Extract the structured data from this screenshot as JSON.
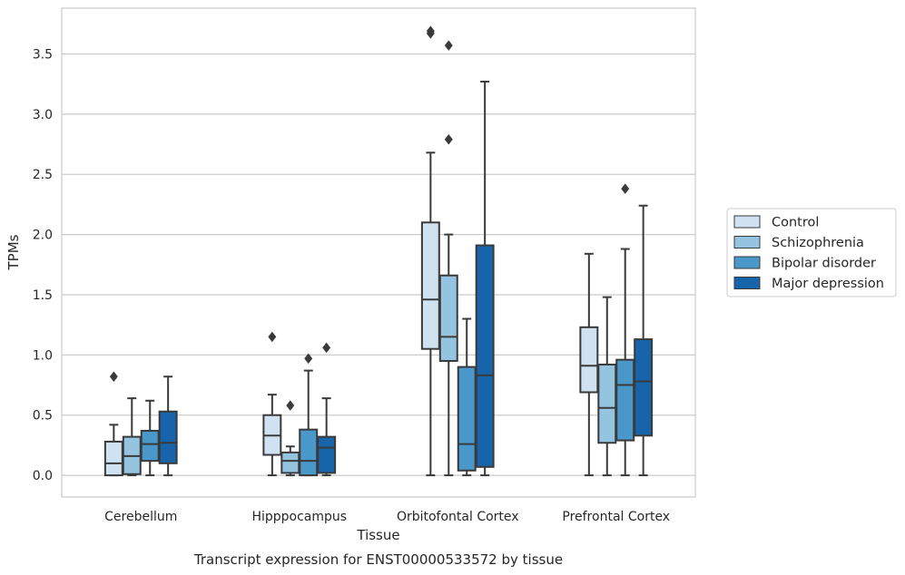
{
  "chart_data": {
    "type": "boxplot",
    "title": "",
    "caption": "Transcript expression for ENST00000533572 by tissue",
    "xlabel": "Tissue",
    "ylabel": "TPMs",
    "ylim": [
      -0.18,
      3.88
    ],
    "yticks": [
      0.0,
      0.5,
      1.0,
      1.5,
      2.0,
      2.5,
      3.0,
      3.5
    ],
    "ytick_labels": [
      "0.0",
      "0.5",
      "1.0",
      "1.5",
      "2.0",
      "2.5",
      "3.0",
      "3.5"
    ],
    "grid": "horizontal",
    "legend_position": "right",
    "categories": [
      "Cerebellum",
      "Hipppocampus",
      "Orbitofontal Cortex",
      "Prefrontal Cortex"
    ],
    "series": [
      {
        "name": "Control",
        "color": "#d0e1f2",
        "boxes": [
          {
            "q1": 0.0,
            "median": 0.1,
            "q3": 0.28,
            "whisker_low": 0.0,
            "whisker_high": 0.42,
            "outliers": [
              0.82
            ]
          },
          {
            "q1": 0.17,
            "median": 0.33,
            "q3": 0.5,
            "whisker_low": 0.0,
            "whisker_high": 0.67,
            "outliers": [
              1.15
            ]
          },
          {
            "q1": 1.05,
            "median": 1.46,
            "q3": 2.1,
            "whisker_low": 0.0,
            "whisker_high": 2.68,
            "outliers": [
              3.67,
              3.69
            ]
          },
          {
            "q1": 0.69,
            "median": 0.91,
            "q3": 1.23,
            "whisker_low": 0.0,
            "whisker_high": 1.84,
            "outliers": []
          }
        ]
      },
      {
        "name": "Schizophrenia",
        "color": "#94c4df",
        "boxes": [
          {
            "q1": 0.01,
            "median": 0.16,
            "q3": 0.32,
            "whisker_low": 0.0,
            "whisker_high": 0.64,
            "outliers": []
          },
          {
            "q1": 0.02,
            "median": 0.12,
            "q3": 0.19,
            "whisker_low": 0.0,
            "whisker_high": 0.24,
            "outliers": [
              0.58
            ]
          },
          {
            "q1": 0.95,
            "median": 1.15,
            "q3": 1.66,
            "whisker_low": 0.0,
            "whisker_high": 2.0,
            "outliers": [
              2.79,
              3.57
            ]
          },
          {
            "q1": 0.27,
            "median": 0.56,
            "q3": 0.92,
            "whisker_low": 0.0,
            "whisker_high": 1.48,
            "outliers": []
          }
        ]
      },
      {
        "name": "Bipolar disorder",
        "color": "#4a98c9",
        "boxes": [
          {
            "q1": 0.12,
            "median": 0.26,
            "q3": 0.37,
            "whisker_low": 0.0,
            "whisker_high": 0.62,
            "outliers": []
          },
          {
            "q1": 0.0,
            "median": 0.12,
            "q3": 0.38,
            "whisker_low": 0.0,
            "whisker_high": 0.87,
            "outliers": [
              0.97
            ]
          },
          {
            "q1": 0.04,
            "median": 0.26,
            "q3": 0.9,
            "whisker_low": 0.0,
            "whisker_high": 1.3,
            "outliers": []
          },
          {
            "q1": 0.29,
            "median": 0.75,
            "q3": 0.96,
            "whisker_low": 0.0,
            "whisker_high": 1.88,
            "outliers": [
              2.38
            ]
          }
        ]
      },
      {
        "name": "Major depression",
        "color": "#1764ab",
        "boxes": [
          {
            "q1": 0.1,
            "median": 0.27,
            "q3": 0.53,
            "whisker_low": 0.0,
            "whisker_high": 0.82,
            "outliers": []
          },
          {
            "q1": 0.02,
            "median": 0.23,
            "q3": 0.32,
            "whisker_low": 0.0,
            "whisker_high": 0.64,
            "outliers": [
              1.06
            ]
          },
          {
            "q1": 0.07,
            "median": 0.83,
            "q3": 1.91,
            "whisker_low": 0.0,
            "whisker_high": 3.27,
            "outliers": []
          },
          {
            "q1": 0.33,
            "median": 0.78,
            "q3": 1.13,
            "whisker_low": 0.0,
            "whisker_high": 2.24,
            "outliers": []
          }
        ]
      }
    ]
  }
}
